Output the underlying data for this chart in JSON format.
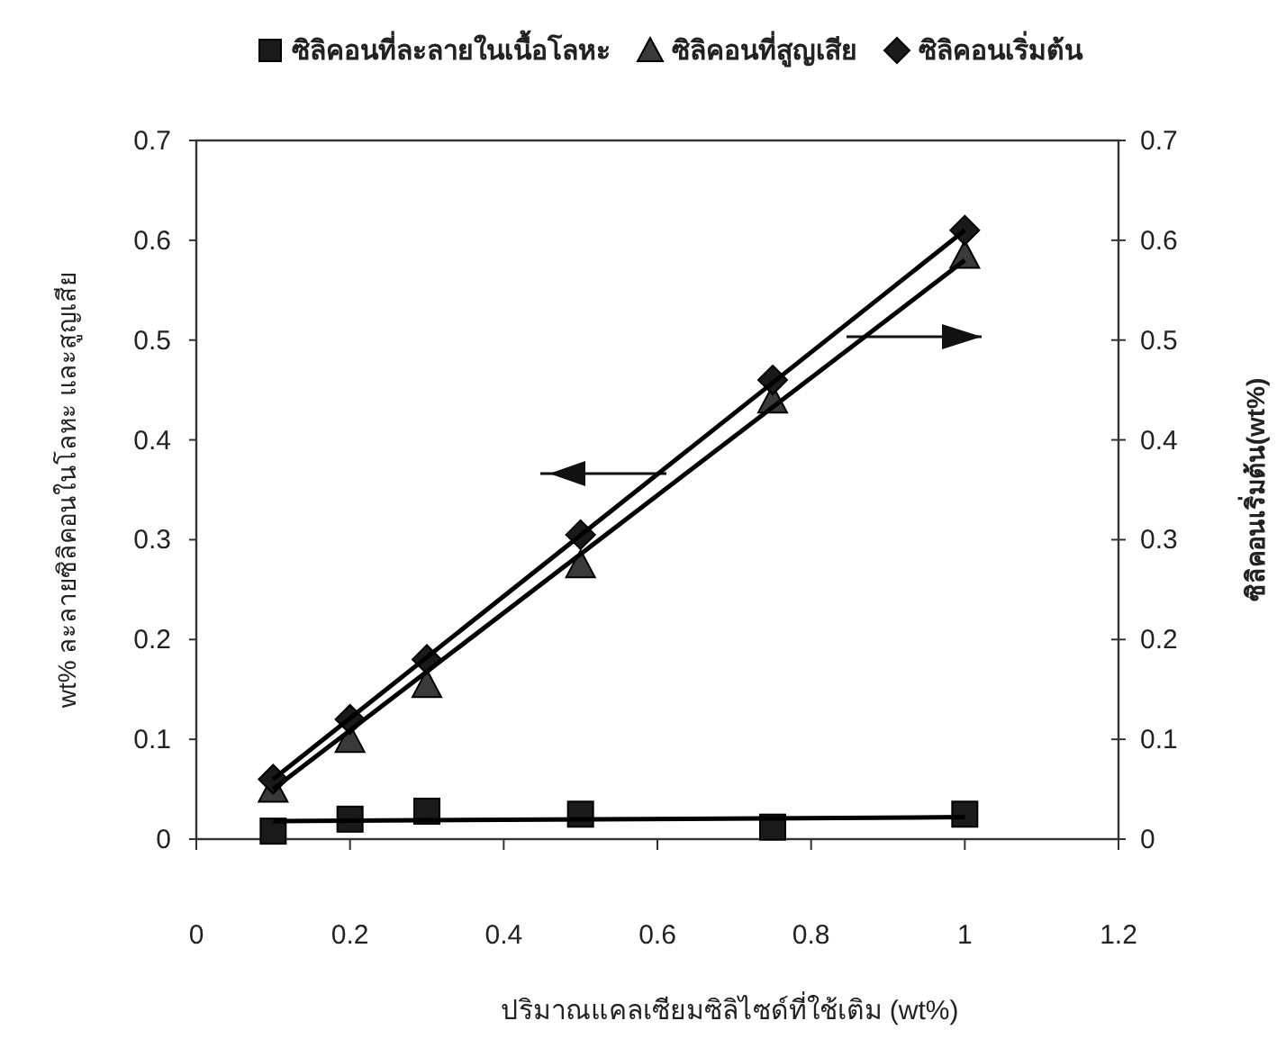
{
  "chart_data": {
    "type": "scatter",
    "xlabel": "ปริมาณแคลเซียมซิลิไซด์ที่ใช้เติม (wt%)",
    "ylabel": "wt% ละลายซิลิคอนในโลหะ และสูญเสีย",
    "y2label": "ซิลิคอนเริ่มต้น(wt%)",
    "xlim": [
      0,
      1.2
    ],
    "xticks": [
      0,
      0.2,
      0.4,
      0.6,
      0.8,
      1,
      1.2
    ],
    "ylim": [
      0,
      0.7
    ],
    "yticks": [
      0,
      0.1,
      0.2,
      0.3,
      0.4,
      0.5,
      0.6,
      0.7
    ],
    "y2lim": [
      0,
      0.7
    ],
    "y2ticks": [
      0,
      0.1,
      0.2,
      0.3,
      0.4,
      0.5,
      0.6,
      0.7
    ],
    "grid": false,
    "legend": "top",
    "series": [
      {
        "name": "ซิลิคอนที่ละลายในเนื้อโลหะ",
        "marker": "square",
        "color": "#1a1a1a",
        "x": [
          0.1,
          0.2,
          0.3,
          0.5,
          0.75,
          1
        ],
        "values": [
          0.008,
          0.02,
          0.028,
          0.025,
          0.012,
          0.025
        ]
      },
      {
        "name": "ซิลิคอนที่สูญเสีย",
        "marker": "triangle",
        "color": "#3a3a3a",
        "x": [
          0.1,
          0.2,
          0.3,
          0.5,
          0.75,
          1
        ],
        "values": [
          0.05,
          0.1,
          0.155,
          0.275,
          0.44,
          0.585
        ]
      },
      {
        "name": "ซิลิคอนเริ่มต้น",
        "marker": "diamond",
        "color": "#1a1a1a",
        "x": [
          0.1,
          0.2,
          0.3,
          0.5,
          0.75,
          1
        ],
        "values": [
          0.06,
          0.12,
          0.18,
          0.305,
          0.46,
          0.61
        ]
      },
      {
        "type": "line",
        "color": "#000000",
        "x": [
          0.1,
          1
        ],
        "values": [
          0.018,
          0.022
        ]
      },
      {
        "type": "line",
        "color": "#000000",
        "x": [
          0.1,
          1
        ],
        "values": [
          0.05,
          0.58
        ]
      },
      {
        "type": "line",
        "color": "#000000",
        "x": [
          0.1,
          1
        ],
        "values": [
          0.06,
          0.61
        ]
      }
    ]
  }
}
